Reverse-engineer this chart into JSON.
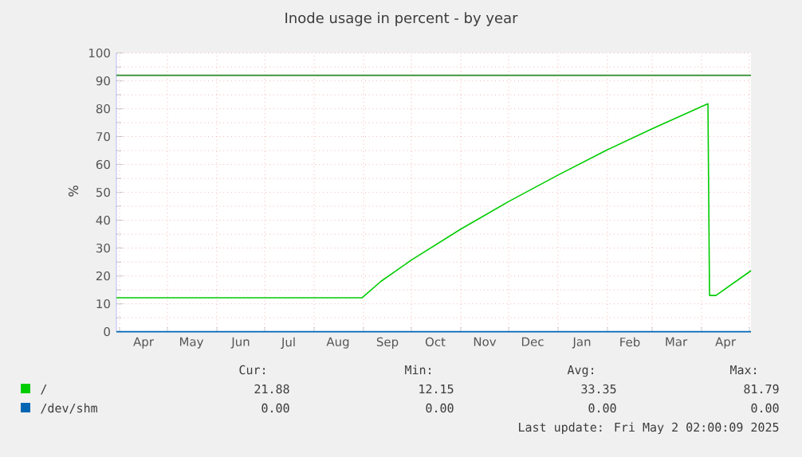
{
  "chart_data": {
    "type": "line",
    "title": "Inode usage in percent - by year",
    "ylabel": "%",
    "series": [
      {
        "name": "/",
        "color": "#00cc00",
        "x": [
          "2024-03-30",
          "2024-08-31",
          "2024-09-12",
          "2024-10-01",
          "2024-11-01",
          "2024-12-01",
          "2025-01-01",
          "2025-02-01",
          "2025-03-01",
          "2025-04-05",
          "2025-04-06",
          "2025-04-10",
          "2025-05-02"
        ],
        "values": [
          12.15,
          12.15,
          18.1,
          25.7,
          36.8,
          46.7,
          56.2,
          65.3,
          72.8,
          81.79,
          13.0,
          13.0,
          21.88
        ]
      },
      {
        "name": "/dev/shm",
        "color": "#0066b3",
        "x": [
          "2024-03-30",
          "2025-05-02"
        ],
        "values": [
          0,
          0
        ]
      }
    ],
    "ref_lines": [
      {
        "axis": "y",
        "value": 92,
        "color": "#2a8a2a"
      }
    ],
    "xlim": [
      "2024-03-30",
      "2025-05-02"
    ],
    "xticks": [
      {
        "value": "2024-04-01",
        "label": null
      },
      {
        "value": "2024-05-01",
        "label": null
      },
      {
        "value": "2024-06-01",
        "label": null
      },
      {
        "value": "2024-07-01",
        "label": null
      },
      {
        "value": "2024-08-01",
        "label": null
      },
      {
        "value": "2024-09-01",
        "label": null
      },
      {
        "value": "2024-10-01",
        "label": null
      },
      {
        "value": "2024-11-01",
        "label": null
      },
      {
        "value": "2024-12-01",
        "label": null
      },
      {
        "value": "2025-01-01",
        "label": null
      },
      {
        "value": "2025-02-01",
        "label": null
      },
      {
        "value": "2025-03-01",
        "label": null
      },
      {
        "value": "2025-04-01",
        "label": null
      },
      {
        "value": "2025-05-01",
        "label": null
      },
      {
        "value": "2024-04-16",
        "label": "Apr"
      },
      {
        "value": "2024-05-16",
        "label": "May"
      },
      {
        "value": "2024-06-16",
        "label": "Jun"
      },
      {
        "value": "2024-07-16",
        "label": "Jul"
      },
      {
        "value": "2024-08-16",
        "label": "Aug"
      },
      {
        "value": "2024-09-16",
        "label": "Sep"
      },
      {
        "value": "2024-10-16",
        "label": "Oct"
      },
      {
        "value": "2024-11-16",
        "label": "Nov"
      },
      {
        "value": "2024-12-16",
        "label": "Dec"
      },
      {
        "value": "2025-01-16",
        "label": "Jan"
      },
      {
        "value": "2025-02-15",
        "label": "Feb"
      },
      {
        "value": "2025-03-16",
        "label": "Mar"
      },
      {
        "value": "2025-04-16",
        "label": "Apr"
      }
    ],
    "ylim": [
      0,
      100
    ],
    "yticks": [
      0,
      10,
      20,
      30,
      40,
      50,
      60,
      70,
      80,
      90,
      100
    ],
    "grid": true,
    "legend": "bottom",
    "marker": "none",
    "line_style": "solid",
    "annotations": [
      "Cur:",
      "Min:",
      "Avg:",
      "Max:",
      "21.88",
      "12.15",
      "33.35",
      "81.79",
      "0.00",
      "0.00",
      "0.00",
      "0.00",
      "Last update: Fri May  2 02:00:09 2025"
    ]
  }
}
